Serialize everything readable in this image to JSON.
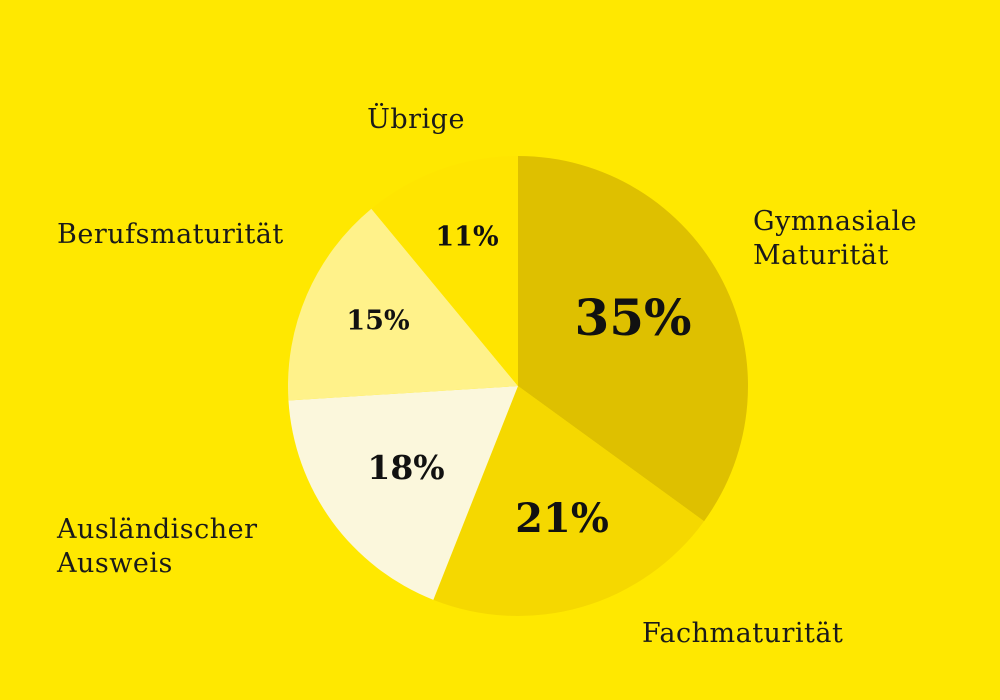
{
  "background_color": "#FFE800",
  "chart_data": {
    "type": "pie",
    "start_angle_deg": 0,
    "direction": "clockwise",
    "slices": [
      {
        "label_lines": [
          "Gymnasiale",
          "Maturität"
        ],
        "value": 35,
        "value_label": "35%",
        "color": "#DEC000"
      },
      {
        "label_lines": [
          "Fachmaturität"
        ],
        "value": 21,
        "value_label": "21%",
        "color": "#F5D800"
      },
      {
        "label_lines": [
          "Ausländischer",
          "Ausweis"
        ],
        "value": 18,
        "value_label": "18%",
        "color": "#FBF7DC"
      },
      {
        "label_lines": [
          "Berufsmaturität"
        ],
        "value": 15,
        "value_label": "15%",
        "color": "#FFF28A"
      },
      {
        "label_lines": [
          "Übrige"
        ],
        "value": 11,
        "value_label": "11%",
        "color": "#FFE500"
      }
    ]
  }
}
